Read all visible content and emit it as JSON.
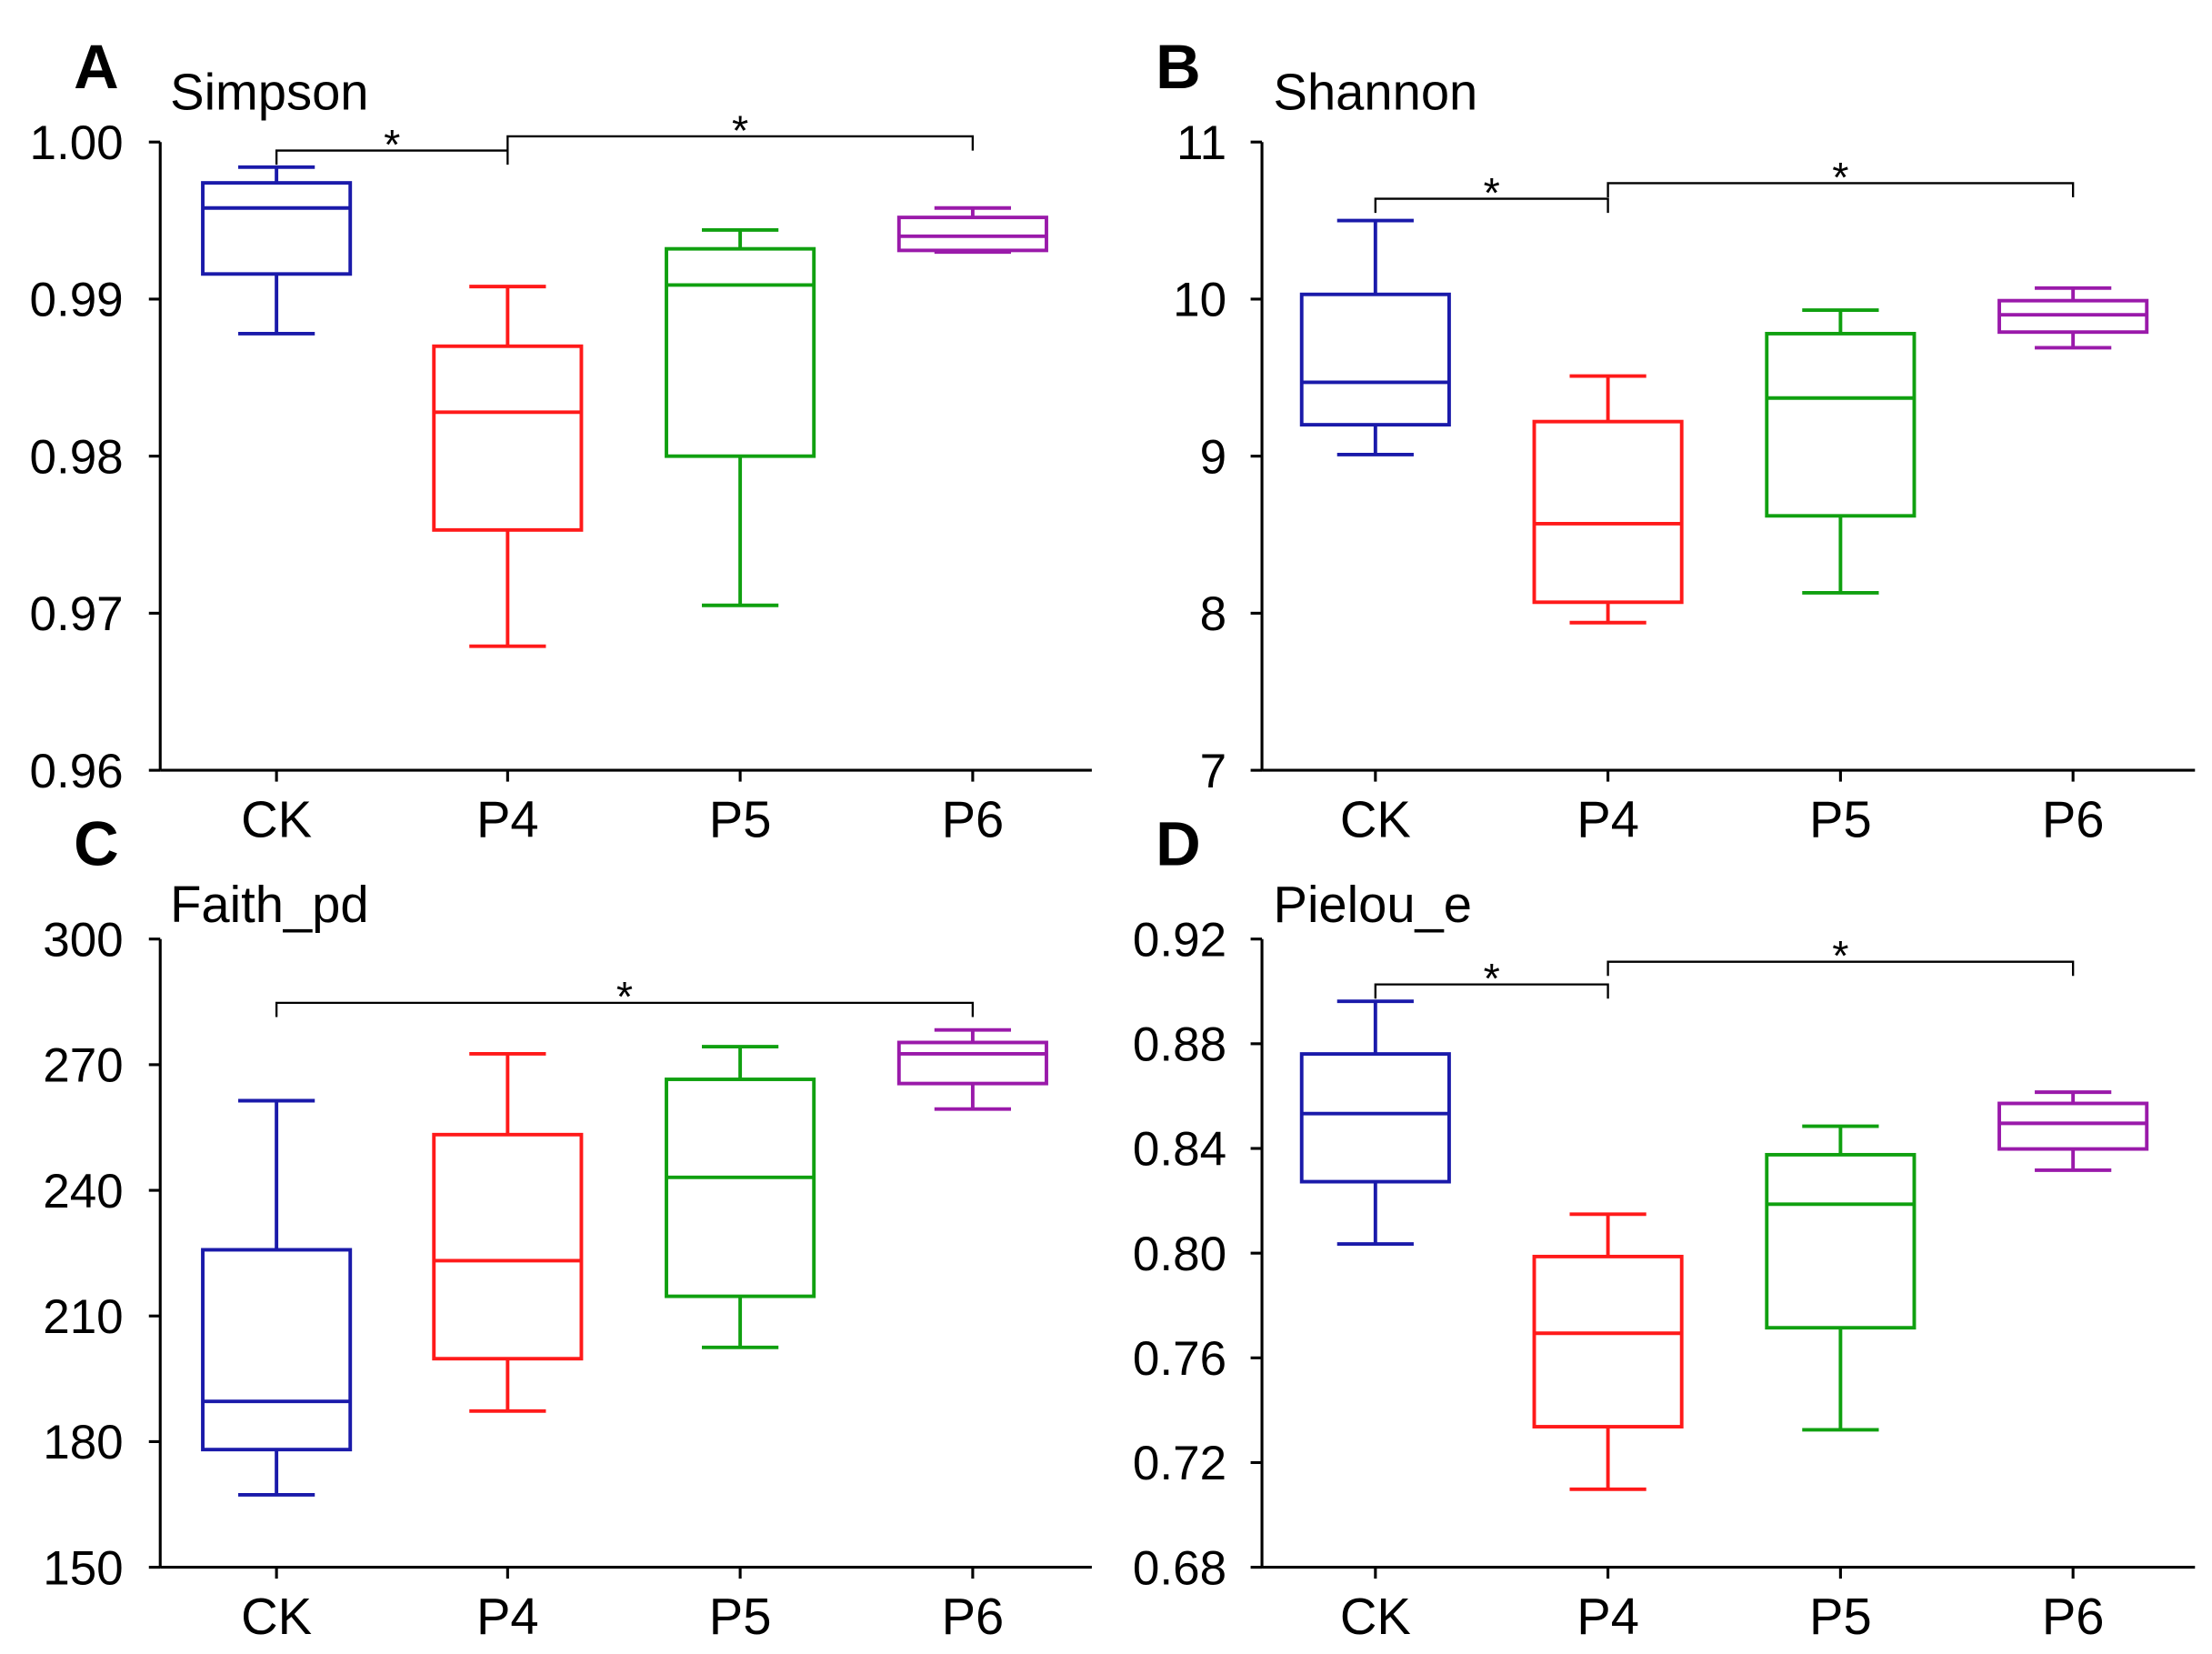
{
  "chart_data": [
    {
      "type": "box",
      "panel_label": "A",
      "title": "Simpson",
      "categories": [
        "CK",
        "P4",
        "P5",
        "P6"
      ],
      "yticks": [
        "1.00",
        "0.99",
        "0.98",
        "0.97",
        "0.96"
      ],
      "ylim": [
        0.96,
        1.0
      ],
      "series": [
        {
          "name": "CK",
          "color": "#1a1aaa",
          "min": 0.9878,
          "q1": 0.9916,
          "median": 0.9958,
          "q3": 0.9974,
          "max": 0.9984
        },
        {
          "name": "P4",
          "color": "#ff1a1a",
          "min": 0.9679,
          "q1": 0.9753,
          "median": 0.9828,
          "q3": 0.987,
          "max": 0.9908
        },
        {
          "name": "P5",
          "color": "#10a010",
          "min": 0.9705,
          "q1": 0.98,
          "median": 0.9909,
          "q3": 0.9932,
          "max": 0.9944
        },
        {
          "name": "P6",
          "color": "#9a1aaa",
          "min": 0.993,
          "q1": 0.9931,
          "median": 0.994,
          "q3": 0.9952,
          "max": 0.9958
        }
      ],
      "significance": [
        {
          "from": "CK",
          "to": "P4",
          "label": "*"
        },
        {
          "from": "P4",
          "to": "P6",
          "label": "*"
        }
      ]
    },
    {
      "type": "box",
      "panel_label": "B",
      "title": "Shannon",
      "categories": [
        "CK",
        "P4",
        "P5",
        "P6"
      ],
      "yticks": [
        "11",
        "10",
        "9",
        "8",
        "7"
      ],
      "ylim": [
        7,
        11
      ],
      "series": [
        {
          "name": "CK",
          "color": "#1a1aaa",
          "min": 9.01,
          "q1": 9.2,
          "median": 9.47,
          "q3": 10.03,
          "max": 10.5
        },
        {
          "name": "P4",
          "color": "#ff1a1a",
          "min": 7.94,
          "q1": 8.07,
          "median": 8.57,
          "q3": 9.22,
          "max": 9.51
        },
        {
          "name": "P5",
          "color": "#10a010",
          "min": 8.13,
          "q1": 8.62,
          "median": 9.37,
          "q3": 9.78,
          "max": 9.93
        },
        {
          "name": "P6",
          "color": "#9a1aaa",
          "min": 9.69,
          "q1": 9.79,
          "median": 9.9,
          "q3": 9.99,
          "max": 10.07
        }
      ],
      "significance": [
        {
          "from": "CK",
          "to": "P4",
          "label": "*"
        },
        {
          "from": "P4",
          "to": "P6",
          "label": "*"
        }
      ]
    },
    {
      "type": "box",
      "panel_label": "C",
      "title": "Faith_pd",
      "categories": [
        "CK",
        "P4",
        "P5",
        "P6"
      ],
      "yticks": [
        "300",
        "270",
        "240",
        "210",
        "180",
        "150"
      ],
      "ylim": [
        150,
        300
      ],
      "series": [
        {
          "name": "CK",
          "color": "#1a1aaa",
          "min": 167.3,
          "q1": 178.1,
          "median": 189.6,
          "q3": 225.8,
          "max": 261.4
        },
        {
          "name": "P4",
          "color": "#ff1a1a",
          "min": 187.3,
          "q1": 199.8,
          "median": 223.2,
          "q3": 253.3,
          "max": 272.6
        },
        {
          "name": "P5",
          "color": "#10a010",
          "min": 202.5,
          "q1": 214.7,
          "median": 243.1,
          "q3": 266.5,
          "max": 274.3
        },
        {
          "name": "P6",
          "color": "#9a1aaa",
          "min": 259.4,
          "q1": 265.5,
          "median": 272.6,
          "q3": 275.3,
          "max": 278.3
        }
      ],
      "significance": [
        {
          "from": "CK",
          "to": "P6",
          "label": "*"
        }
      ]
    },
    {
      "type": "box",
      "panel_label": "D",
      "title": "Pielou_e",
      "categories": [
        "CK",
        "P4",
        "P5",
        "P6"
      ],
      "yticks": [
        "0.92",
        "0.88",
        "0.84",
        "0.80",
        "0.76",
        "0.72",
        "0.68"
      ],
      "ylim": [
        0.68,
        0.92
      ],
      "series": [
        {
          "name": "CK",
          "color": "#1a1aaa",
          "min": 0.8035,
          "q1": 0.8273,
          "median": 0.8533,
          "q3": 0.8761,
          "max": 0.8962
        },
        {
          "name": "P4",
          "color": "#ff1a1a",
          "min": 0.7098,
          "q1": 0.7337,
          "median": 0.7694,
          "q3": 0.7987,
          "max": 0.8149
        },
        {
          "name": "P5",
          "color": "#10a010",
          "min": 0.7325,
          "q1": 0.7715,
          "median": 0.8187,
          "q3": 0.8376,
          "max": 0.8485
        },
        {
          "name": "P6",
          "color": "#9a1aaa",
          "min": 0.8317,
          "q1": 0.8398,
          "median": 0.8496,
          "q3": 0.8572,
          "max": 0.8615
        }
      ],
      "significance": [
        {
          "from": "CK",
          "to": "P4",
          "label": "*"
        },
        {
          "from": "P4",
          "to": "P6",
          "label": "*"
        }
      ]
    }
  ]
}
